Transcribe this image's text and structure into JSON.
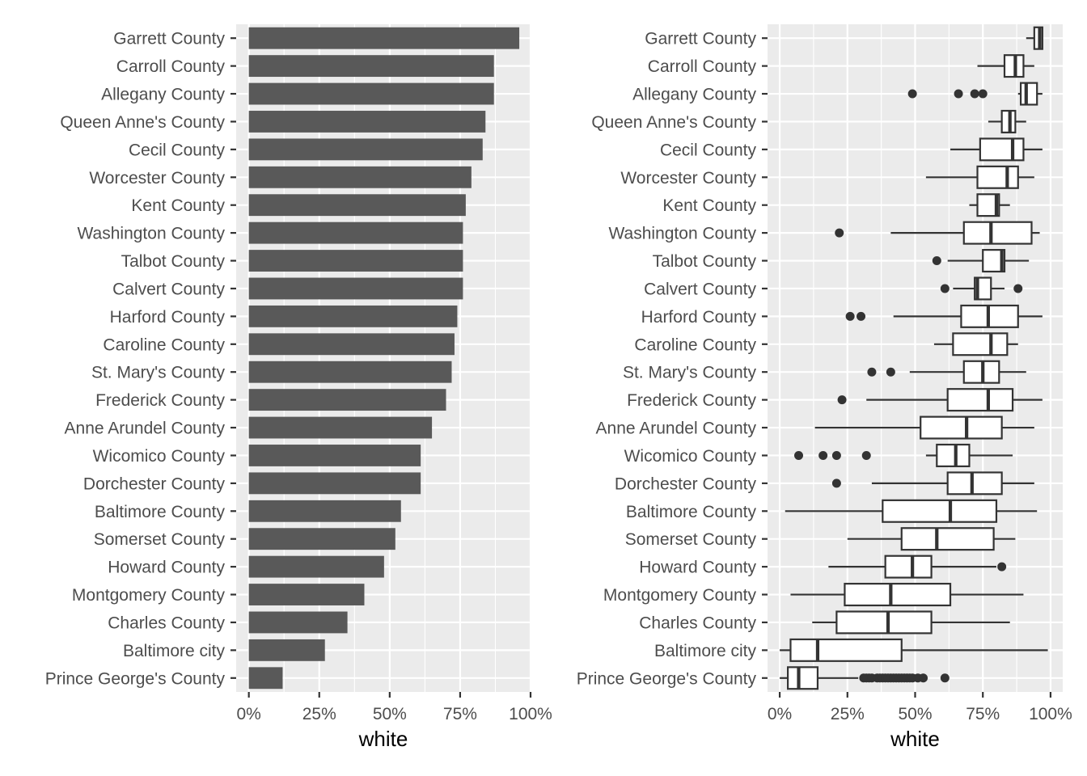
{
  "colors": {
    "panel_bg": "#ebebeb",
    "grid": "#ffffff",
    "bar_fill": "#595959",
    "box_fill": "#ffffff",
    "box_stroke": "#333333",
    "outlier": "#333333",
    "text": "#4d4d4d",
    "title": "#000000"
  },
  "chart_data": [
    {
      "type": "bar",
      "orientation": "horizontal",
      "categories": [
        "Garrett County",
        "Carroll County",
        "Allegany County",
        "Queen Anne's County",
        "Cecil County",
        "Worcester County",
        "Kent County",
        "Washington County",
        "Talbot County",
        "Calvert County",
        "Harford County",
        "Caroline County",
        "St. Mary's County",
        "Frederick County",
        "Anne Arundel County",
        "Wicomico County",
        "Dorchester County",
        "Baltimore County",
        "Somerset County",
        "Howard County",
        "Montgomery County",
        "Charles County",
        "Baltimore city",
        "Prince George's County"
      ],
      "values": [
        0.96,
        0.87,
        0.87,
        0.84,
        0.83,
        0.79,
        0.77,
        0.76,
        0.76,
        0.76,
        0.74,
        0.73,
        0.72,
        0.7,
        0.65,
        0.61,
        0.61,
        0.54,
        0.52,
        0.48,
        0.41,
        0.35,
        0.27,
        0.12
      ],
      "xlabel": "white",
      "xlim": [
        -0.045,
        1.0
      ],
      "xticks": [
        0,
        0.25,
        0.5,
        0.75,
        1.0
      ],
      "xtick_labels": [
        "0%",
        "25%",
        "50%",
        "75%",
        "100%"
      ],
      "grid": true
    },
    {
      "type": "box",
      "orientation": "horizontal",
      "categories": [
        "Garrett County",
        "Carroll County",
        "Allegany County",
        "Queen Anne's County",
        "Cecil County",
        "Worcester County",
        "Kent County",
        "Washington County",
        "Talbot County",
        "Calvert County",
        "Harford County",
        "Caroline County",
        "St. Mary's County",
        "Frederick County",
        "Anne Arundel County",
        "Wicomico County",
        "Dorchester County",
        "Baltimore County",
        "Somerset County",
        "Howard County",
        "Montgomery County",
        "Charles County",
        "Baltimore city",
        "Prince George's County"
      ],
      "boxes": [
        {
          "whisker_low": 0.91,
          "q1": 0.94,
          "median": 0.96,
          "q3": 0.97,
          "whisker_high": 0.97,
          "outliers": []
        },
        {
          "whisker_low": 0.73,
          "q1": 0.83,
          "median": 0.87,
          "q3": 0.9,
          "whisker_high": 0.94,
          "outliers": []
        },
        {
          "whisker_low": 0.88,
          "q1": 0.89,
          "median": 0.91,
          "q3": 0.95,
          "whisker_high": 0.97,
          "outliers": [
            0.49,
            0.66,
            0.72,
            0.75
          ]
        },
        {
          "whisker_low": 0.77,
          "q1": 0.82,
          "median": 0.85,
          "q3": 0.87,
          "whisker_high": 0.91,
          "outliers": []
        },
        {
          "whisker_low": 0.63,
          "q1": 0.74,
          "median": 0.86,
          "q3": 0.9,
          "whisker_high": 0.97,
          "outliers": []
        },
        {
          "whisker_low": 0.54,
          "q1": 0.73,
          "median": 0.84,
          "q3": 0.88,
          "whisker_high": 0.94,
          "outliers": []
        },
        {
          "whisker_low": 0.7,
          "q1": 0.73,
          "median": 0.8,
          "q3": 0.81,
          "whisker_high": 0.85,
          "outliers": []
        },
        {
          "whisker_low": 0.41,
          "q1": 0.68,
          "median": 0.78,
          "q3": 0.93,
          "whisker_high": 0.96,
          "outliers": [
            0.22
          ]
        },
        {
          "whisker_low": 0.62,
          "q1": 0.75,
          "median": 0.82,
          "q3": 0.83,
          "whisker_high": 0.92,
          "outliers": [
            0.58
          ]
        },
        {
          "whisker_low": 0.64,
          "q1": 0.72,
          "median": 0.73,
          "q3": 0.78,
          "whisker_high": 0.83,
          "outliers": [
            0.61,
            0.88
          ]
        },
        {
          "whisker_low": 0.42,
          "q1": 0.67,
          "median": 0.77,
          "q3": 0.88,
          "whisker_high": 0.97,
          "outliers": [
            0.26,
            0.3
          ]
        },
        {
          "whisker_low": 0.57,
          "q1": 0.64,
          "median": 0.78,
          "q3": 0.84,
          "whisker_high": 0.88,
          "outliers": []
        },
        {
          "whisker_low": 0.48,
          "q1": 0.68,
          "median": 0.75,
          "q3": 0.81,
          "whisker_high": 0.91,
          "outliers": [
            0.34,
            0.41
          ]
        },
        {
          "whisker_low": 0.32,
          "q1": 0.62,
          "median": 0.77,
          "q3": 0.86,
          "whisker_high": 0.97,
          "outliers": [
            0.23
          ]
        },
        {
          "whisker_low": 0.13,
          "q1": 0.52,
          "median": 0.69,
          "q3": 0.82,
          "whisker_high": 0.94,
          "outliers": []
        },
        {
          "whisker_low": 0.54,
          "q1": 0.58,
          "median": 0.65,
          "q3": 0.7,
          "whisker_high": 0.86,
          "outliers": [
            0.07,
            0.16,
            0.21,
            0.32
          ]
        },
        {
          "whisker_low": 0.34,
          "q1": 0.62,
          "median": 0.71,
          "q3": 0.82,
          "whisker_high": 0.94,
          "outliers": [
            0.21
          ]
        },
        {
          "whisker_low": 0.02,
          "q1": 0.38,
          "median": 0.63,
          "q3": 0.8,
          "whisker_high": 0.95,
          "outliers": []
        },
        {
          "whisker_low": 0.25,
          "q1": 0.45,
          "median": 0.58,
          "q3": 0.79,
          "whisker_high": 0.87,
          "outliers": []
        },
        {
          "whisker_low": 0.18,
          "q1": 0.39,
          "median": 0.49,
          "q3": 0.56,
          "whisker_high": 0.8,
          "outliers": [
            0.82
          ]
        },
        {
          "whisker_low": 0.04,
          "q1": 0.24,
          "median": 0.41,
          "q3": 0.63,
          "whisker_high": 0.9,
          "outliers": []
        },
        {
          "whisker_low": 0.12,
          "q1": 0.21,
          "median": 0.4,
          "q3": 0.56,
          "whisker_high": 0.85,
          "outliers": []
        },
        {
          "whisker_low": 0.0,
          "q1": 0.04,
          "median": 0.14,
          "q3": 0.45,
          "whisker_high": 0.99,
          "outliers": []
        },
        {
          "whisker_low": 0.0,
          "q1": 0.03,
          "median": 0.07,
          "q3": 0.14,
          "whisker_high": 0.29,
          "outliers": [
            0.31,
            0.32,
            0.33,
            0.34,
            0.36,
            0.37,
            0.38,
            0.39,
            0.4,
            0.41,
            0.42,
            0.43,
            0.44,
            0.45,
            0.46,
            0.47,
            0.48,
            0.49,
            0.51,
            0.53,
            0.61
          ]
        }
      ],
      "xlabel": "white",
      "xlim": [
        -0.045,
        1.045
      ],
      "xticks": [
        0,
        0.25,
        0.5,
        0.75,
        1.0
      ],
      "xtick_labels": [
        "0%",
        "25%",
        "50%",
        "75%",
        "100%"
      ],
      "grid": true
    }
  ]
}
